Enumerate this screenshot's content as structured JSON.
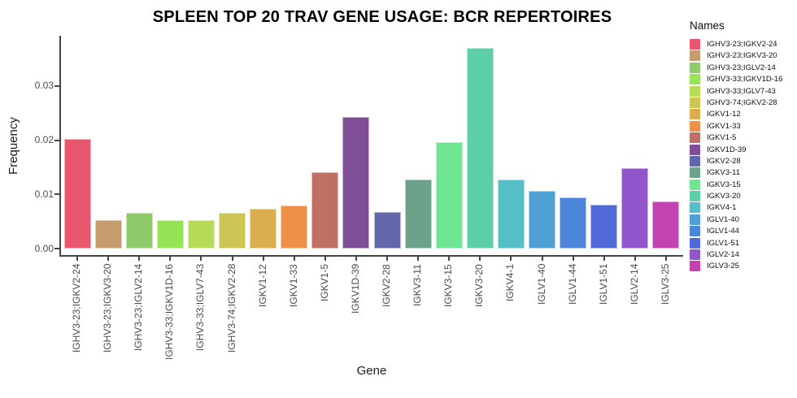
{
  "title": "SPLEEN TOP 20 TRAV GENE USAGE: BCR REPERTOIRES",
  "chart_data": {
    "type": "bar",
    "title": "SPLEEN TOP 20 TRAV GENE USAGE: BCR REPERTOIRES",
    "xlabel": "Gene",
    "ylabel": "Frequency",
    "ylim": [
      0,
      0.0393
    ],
    "yticks": [
      0,
      0.01,
      0.02,
      0.03
    ],
    "ytick_labels": [
      "0.00",
      "0.01",
      "0.02",
      "0.03"
    ],
    "grid": false,
    "legend_title": "Names",
    "legend_position": "right",
    "categories": [
      "IGHV3-23;IGKV2-24",
      "IGHV3-23;IGKV3-20",
      "IGHV3-23;IGLV2-14",
      "IGHV3-33;IGKV1D-16",
      "IGHV3-33;IGLV7-43",
      "IGHV3-74;IGKV2-28",
      "IGKV1-12",
      "IGKV1-33",
      "IGKV1-5",
      "IGKV1D-39",
      "IGKV2-28",
      "IGKV3-11",
      "IGKV3-15",
      "IGKV3-20",
      "IGKV4-1",
      "IGLV1-40",
      "IGLV1-44",
      "IGLV1-51",
      "IGLV2-14",
      "IGLV3-25"
    ],
    "values": [
      0.0202,
      0.0053,
      0.0066,
      0.0053,
      0.0053,
      0.0066,
      0.0073,
      0.008,
      0.0141,
      0.0243,
      0.0067,
      0.0128,
      0.0196,
      0.0371,
      0.0128,
      0.0107,
      0.0094,
      0.0081,
      0.0148,
      0.0087
    ],
    "colors": [
      "#E8576E",
      "#C69B6E",
      "#8FCA6C",
      "#97E357",
      "#B7DA59",
      "#CEC654",
      "#DAAD4D",
      "#EE9147",
      "#BF6F63",
      "#7F4E94",
      "#6167A9",
      "#6CA28A",
      "#6FE492",
      "#5DCFA7",
      "#55BEC6",
      "#4FA0D5",
      "#4C85DA",
      "#5269DA",
      "#9255CC",
      "#C443B0"
    ],
    "axis_color": "#444444",
    "tick_label_color": "#4d4d4d"
  }
}
